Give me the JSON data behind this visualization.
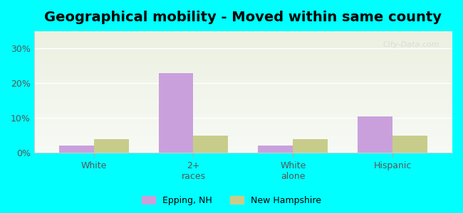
{
  "title": "Geographical mobility - Moved within same county",
  "categories": [
    "White",
    "2+\nraces",
    "White\nalone",
    "Hispanic"
  ],
  "epping_values": [
    2.0,
    23.0,
    2.0,
    10.5
  ],
  "nh_values": [
    4.0,
    5.0,
    4.0,
    5.0
  ],
  "epping_color": "#c9a0dc",
  "nh_color": "#c8cc8a",
  "ylim": [
    0,
    35
  ],
  "yticks": [
    0,
    10,
    20,
    30
  ],
  "ytick_labels": [
    "0%",
    "10%",
    "20%",
    "30%"
  ],
  "background_color": "#00ffff",
  "bar_width": 0.35,
  "title_fontsize": 14,
  "watermark": "City-Data.com",
  "legend_epping": "Epping, NH",
  "legend_nh": "New Hampshire"
}
